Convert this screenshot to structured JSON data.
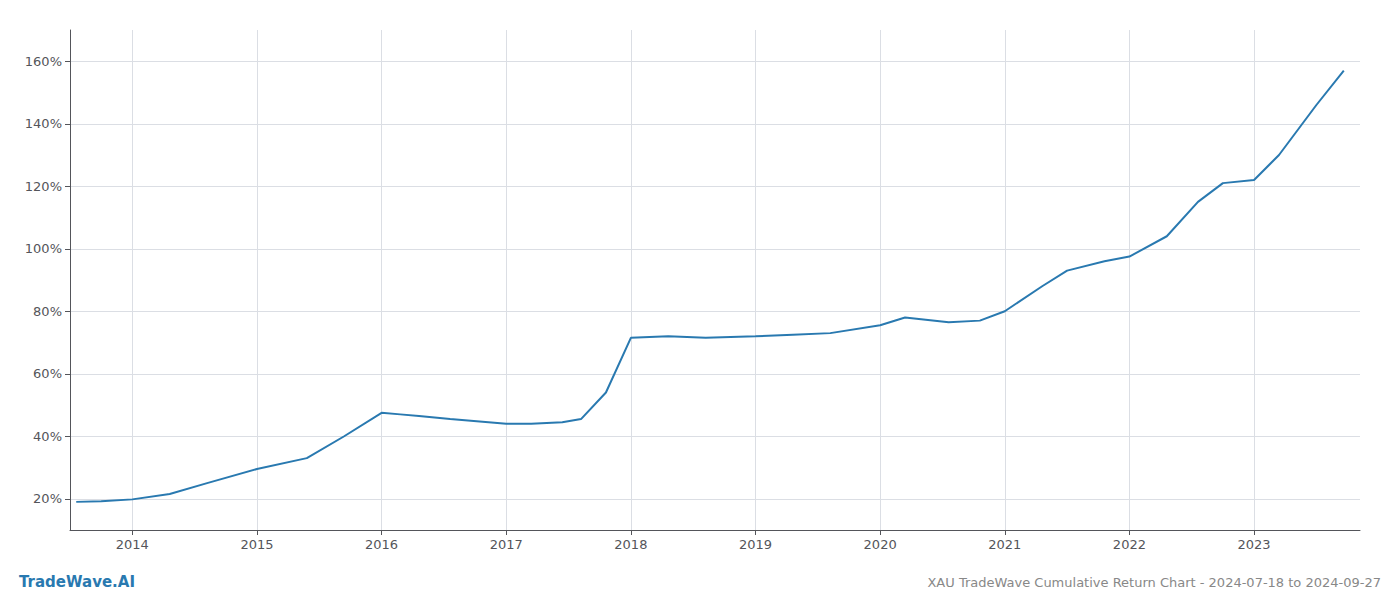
{
  "chart_data": {
    "type": "line",
    "title": "XAU TradeWave Cumulative Return Chart - 2024-07-18 to 2024-09-27",
    "annotations": [
      "TradeWave.AI"
    ],
    "x": [
      2013.55,
      2013.75,
      2014.0,
      2014.3,
      2014.6,
      2015.0,
      2015.4,
      2015.7,
      2016.0,
      2016.15,
      2016.3,
      2016.55,
      2017.0,
      2017.2,
      2017.45,
      2017.6,
      2017.8,
      2018.0,
      2018.3,
      2018.6,
      2019.0,
      2019.3,
      2019.6,
      2020.0,
      2020.2,
      2020.55,
      2020.8,
      2021.0,
      2021.3,
      2021.5,
      2021.8,
      2022.0,
      2022.3,
      2022.55,
      2022.75,
      2023.0,
      2023.2,
      2023.5,
      2023.72
    ],
    "values": [
      19.0,
      19.2,
      19.8,
      21.5,
      25.0,
      29.5,
      33.0,
      40.0,
      47.5,
      47.0,
      46.5,
      45.5,
      44.0,
      44.0,
      44.5,
      45.5,
      54.0,
      71.5,
      72.0,
      71.5,
      72.0,
      72.5,
      73.0,
      75.5,
      78.0,
      76.5,
      77.0,
      80.0,
      88.0,
      93.0,
      96.0,
      97.5,
      104.0,
      115.0,
      121.0,
      122.0,
      130.0,
      146.0,
      157.0
    ],
    "color": "#2979b0",
    "xlim": [
      2013.5,
      2023.85
    ],
    "ylim": [
      10,
      170
    ],
    "xticks": [
      2014,
      2015,
      2016,
      2017,
      2018,
      2019,
      2020,
      2021,
      2022,
      2023
    ],
    "yticks": [
      {
        "value": 20,
        "label": "20%"
      },
      {
        "value": 40,
        "label": "40%"
      },
      {
        "value": 60,
        "label": "60%"
      },
      {
        "value": 80,
        "label": "80%"
      },
      {
        "value": 100,
        "label": "100%"
      },
      {
        "value": 120,
        "label": "120%"
      },
      {
        "value": 140,
        "label": "140%"
      },
      {
        "value": 160,
        "label": "160%"
      }
    ],
    "grid": true
  }
}
